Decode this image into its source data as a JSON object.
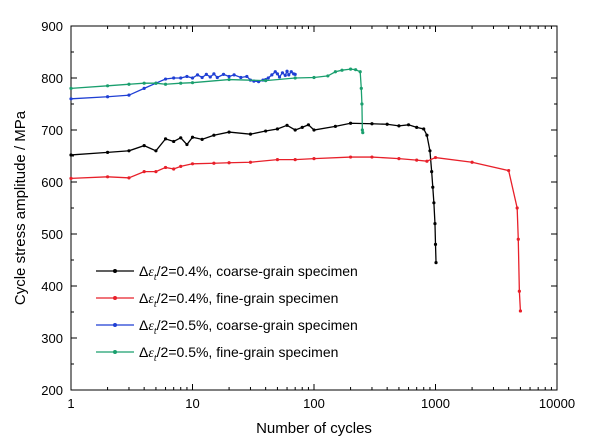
{
  "chart_data": {
    "type": "line",
    "xscale": "log",
    "xlim": [
      1,
      10000
    ],
    "ylim": [
      200,
      900
    ],
    "xlabel": "Number of cycles",
    "ylabel": "Cycle stress amplitude / MPa",
    "x_ticks": [
      1,
      10,
      100,
      1000,
      10000
    ],
    "x_tick_labels": [
      "1",
      "10",
      "100",
      "1000",
      "10000"
    ],
    "y_ticks": [
      200,
      300,
      400,
      500,
      600,
      700,
      800,
      900
    ],
    "y_tick_labels": [
      "200",
      "300",
      "400",
      "500",
      "600",
      "700",
      "800",
      "900"
    ],
    "legend_position": "lower-left",
    "series": [
      {
        "legend_prefix": "Δε",
        "legend_sub": "t",
        "legend_suffix": "/2=0.4%, coarse-grain specimen",
        "color": "#000000",
        "points": [
          [
            1,
            652
          ],
          [
            2,
            657
          ],
          [
            3,
            660
          ],
          [
            4,
            670
          ],
          [
            5,
            660
          ],
          [
            6,
            683
          ],
          [
            7,
            678
          ],
          [
            8,
            685
          ],
          [
            9,
            672
          ],
          [
            10,
            686
          ],
          [
            12,
            682
          ],
          [
            15,
            690
          ],
          [
            20,
            696
          ],
          [
            30,
            692
          ],
          [
            40,
            698
          ],
          [
            50,
            702
          ],
          [
            60,
            709
          ],
          [
            70,
            700
          ],
          [
            80,
            705
          ],
          [
            90,
            710
          ],
          [
            100,
            700
          ],
          [
            150,
            707
          ],
          [
            200,
            713
          ],
          [
            300,
            712
          ],
          [
            400,
            711
          ],
          [
            500,
            708
          ],
          [
            600,
            710
          ],
          [
            700,
            705
          ],
          [
            800,
            702
          ],
          [
            850,
            690
          ],
          [
            900,
            660
          ],
          [
            930,
            620
          ],
          [
            950,
            590
          ],
          [
            970,
            560
          ],
          [
            990,
            520
          ],
          [
            1000,
            480
          ],
          [
            1010,
            445
          ]
        ]
      },
      {
        "legend_prefix": "Δε",
        "legend_sub": "t",
        "legend_suffix": "/2=0.4%, fine-grain specimen",
        "color": "#e8202a",
        "points": [
          [
            1,
            607
          ],
          [
            2,
            610
          ],
          [
            3,
            608
          ],
          [
            4,
            620
          ],
          [
            5,
            620
          ],
          [
            6,
            628
          ],
          [
            7,
            625
          ],
          [
            8,
            630
          ],
          [
            10,
            635
          ],
          [
            15,
            636
          ],
          [
            20,
            637
          ],
          [
            30,
            638
          ],
          [
            50,
            643
          ],
          [
            70,
            643
          ],
          [
            100,
            645
          ],
          [
            200,
            648
          ],
          [
            300,
            648
          ],
          [
            500,
            645
          ],
          [
            700,
            642
          ],
          [
            850,
            640
          ],
          [
            1000,
            647
          ],
          [
            2000,
            638
          ],
          [
            4000,
            622
          ],
          [
            4700,
            550
          ],
          [
            4800,
            490
          ],
          [
            4900,
            390
          ],
          [
            5000,
            352
          ]
        ]
      },
      {
        "legend_prefix": "Δε",
        "legend_sub": "t",
        "legend_suffix": "/2=0.5%, coarse-grain specimen",
        "color": "#1f3fd4",
        "points": [
          [
            1,
            760
          ],
          [
            2,
            764
          ],
          [
            3,
            767
          ],
          [
            4,
            780
          ],
          [
            5,
            790
          ],
          [
            6,
            798
          ],
          [
            7,
            800
          ],
          [
            8,
            800
          ],
          [
            9,
            803
          ],
          [
            10,
            800
          ],
          [
            11,
            806
          ],
          [
            12,
            801
          ],
          [
            13,
            807
          ],
          [
            14,
            802
          ],
          [
            15,
            808
          ],
          [
            16,
            801
          ],
          [
            18,
            807
          ],
          [
            20,
            803
          ],
          [
            22,
            806
          ],
          [
            25,
            801
          ],
          [
            28,
            803
          ],
          [
            30,
            796
          ],
          [
            32,
            794
          ],
          [
            35,
            793
          ],
          [
            38,
            796
          ],
          [
            40,
            797
          ],
          [
            42,
            800
          ],
          [
            45,
            806
          ],
          [
            48,
            812
          ],
          [
            50,
            808
          ],
          [
            52,
            802
          ],
          [
            55,
            810
          ],
          [
            58,
            805
          ],
          [
            60,
            813
          ],
          [
            62,
            806
          ],
          [
            65,
            812
          ],
          [
            68,
            808
          ],
          [
            70,
            807
          ]
        ]
      },
      {
        "legend_prefix": "Δε",
        "legend_sub": "t",
        "legend_suffix": "/2=0.5%, fine-grain specimen",
        "color": "#1a9f6e",
        "points": [
          [
            1,
            780
          ],
          [
            2,
            785
          ],
          [
            3,
            788
          ],
          [
            4,
            790
          ],
          [
            5,
            790
          ],
          [
            6,
            788
          ],
          [
            8,
            790
          ],
          [
            10,
            791
          ],
          [
            20,
            797
          ],
          [
            40,
            795
          ],
          [
            70,
            800
          ],
          [
            100,
            801
          ],
          [
            130,
            804
          ],
          [
            150,
            812
          ],
          [
            170,
            815
          ],
          [
            200,
            817
          ],
          [
            220,
            816
          ],
          [
            240,
            812
          ],
          [
            245,
            780
          ],
          [
            248,
            750
          ],
          [
            250,
            700
          ],
          [
            252,
            695
          ]
        ]
      }
    ]
  }
}
